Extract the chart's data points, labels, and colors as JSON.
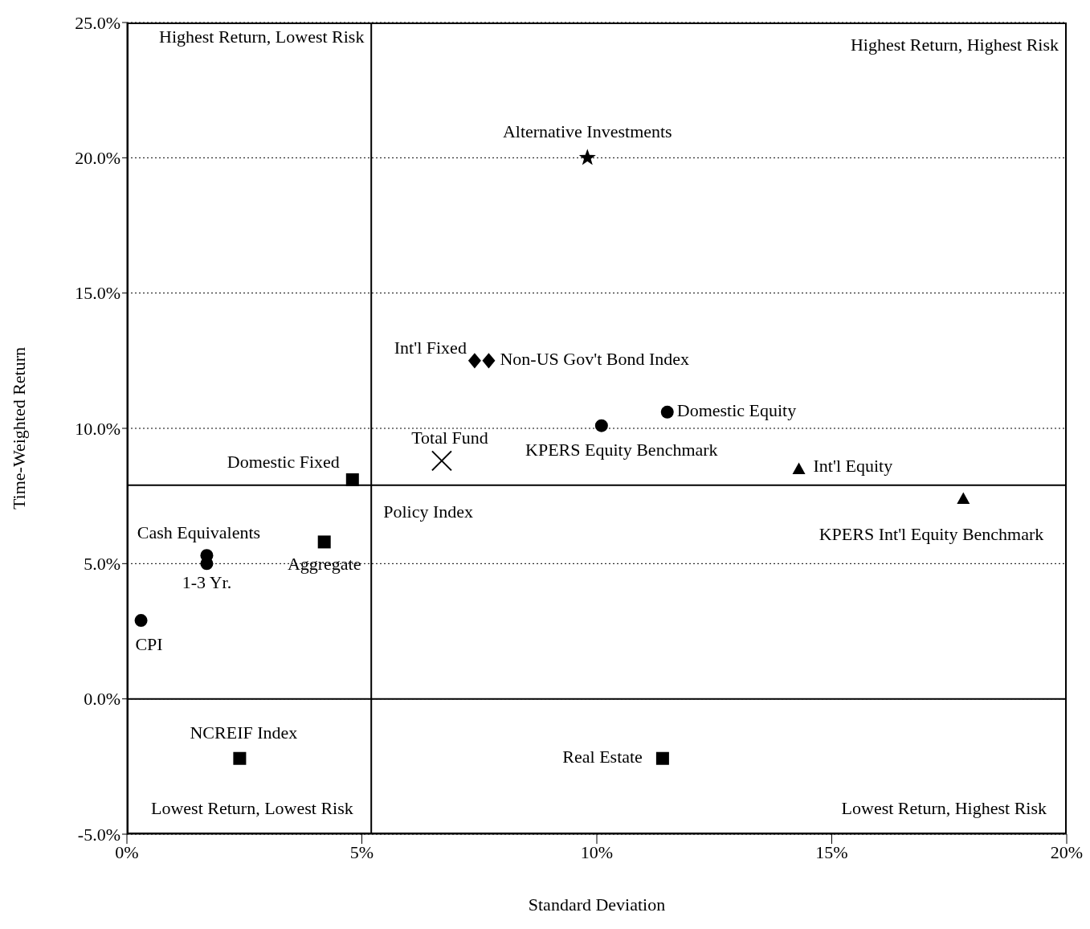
{
  "chart_data": {
    "type": "scatter",
    "xlabel": "Standard Deviation",
    "ylabel": "Time-Weighted Return",
    "xlim": [
      0,
      20
    ],
    "xticks": [
      {
        "value": 0,
        "label": "0%"
      },
      {
        "value": 5,
        "label": "5%"
      },
      {
        "value": 10,
        "label": "10%"
      },
      {
        "value": 15,
        "label": "15%"
      },
      {
        "value": 20,
        "label": "20%"
      }
    ],
    "ylim": [
      -5,
      25
    ],
    "yticks": [
      {
        "value": -5,
        "label": "-5.0%"
      },
      {
        "value": 0,
        "label": "0.0%"
      },
      {
        "value": 5,
        "label": "5.0%"
      },
      {
        "value": 10,
        "label": "10.0%"
      },
      {
        "value": 15,
        "label": "15.0%"
      },
      {
        "value": 20,
        "label": "20.0%"
      },
      {
        "value": 25,
        "label": "25.0%"
      }
    ],
    "grid": "y",
    "legend": false,
    "series": [
      {
        "name": "Alternative Investments",
        "color": "#000000",
        "marker": "star",
        "x": [
          9.8
        ],
        "values": [
          20.0
        ]
      },
      {
        "name": "Int'l Fixed",
        "color": "#000000",
        "marker": "diamond",
        "x": [
          7.4
        ],
        "values": [
          12.5
        ]
      },
      {
        "name": "Non-US Gov't Bond Index",
        "color": "#000000",
        "marker": "diamond",
        "x": [
          7.7
        ],
        "values": [
          12.5
        ]
      },
      {
        "name": "Domestic Equity",
        "color": "#000000",
        "marker": "circle",
        "x": [
          11.5
        ],
        "values": [
          10.6
        ]
      },
      {
        "name": "KPERS Equity Benchmark",
        "color": "#000000",
        "marker": "circle",
        "x": [
          10.1
        ],
        "values": [
          10.1
        ]
      },
      {
        "name": "Total Fund",
        "color": "#000000",
        "marker": "cross",
        "x": [
          6.7
        ],
        "values": [
          8.8
        ]
      },
      {
        "name": "Domestic Fixed",
        "color": "#000000",
        "marker": "square",
        "x": [
          4.8
        ],
        "values": [
          8.1
        ]
      },
      {
        "name": "Aggregate",
        "color": "#000000",
        "marker": "square",
        "x": [
          4.2
        ],
        "values": [
          5.8
        ]
      },
      {
        "name": "Cash Equivalents",
        "color": "#000000",
        "marker": "circle",
        "x": [
          1.7
        ],
        "values": [
          5.3
        ]
      },
      {
        "name": "1-3 Yr.",
        "color": "#000000",
        "marker": "circle",
        "x": [
          1.7
        ],
        "values": [
          5.0
        ]
      },
      {
        "name": "CPI",
        "color": "#000000",
        "marker": "circle",
        "x": [
          0.3
        ],
        "values": [
          2.9
        ]
      },
      {
        "name": "NCREIF Index",
        "color": "#000000",
        "marker": "square",
        "x": [
          2.4
        ],
        "values": [
          -2.2
        ]
      },
      {
        "name": "Real Estate",
        "color": "#000000",
        "marker": "square",
        "x": [
          11.4
        ],
        "values": [
          -2.2
        ]
      },
      {
        "name": "Int'l Equity",
        "color": "#000000",
        "marker": "triangle",
        "x": [
          14.3
        ],
        "values": [
          8.5
        ]
      },
      {
        "name": "KPERS Int'l Equity Benchmark",
        "color": "#000000",
        "marker": "triangle",
        "x": [
          17.8
        ],
        "values": [
          7.4
        ]
      }
    ],
    "ref_lines": [
      {
        "axis": "y",
        "value": 7.9,
        "label": "Policy Index",
        "color": "#000000",
        "line_style": "solid"
      },
      {
        "axis": "x",
        "value": 5.2,
        "color": "#000000",
        "line_style": "solid"
      },
      {
        "axis": "y",
        "value": 0,
        "color": "#000000",
        "line_style": "solid"
      }
    ],
    "annotations": [
      "Highest Return, Lowest Risk",
      "Highest Return, Highest Risk",
      "Lowest Return, Lowest Risk",
      "Lowest Return, Highest Risk"
    ]
  }
}
